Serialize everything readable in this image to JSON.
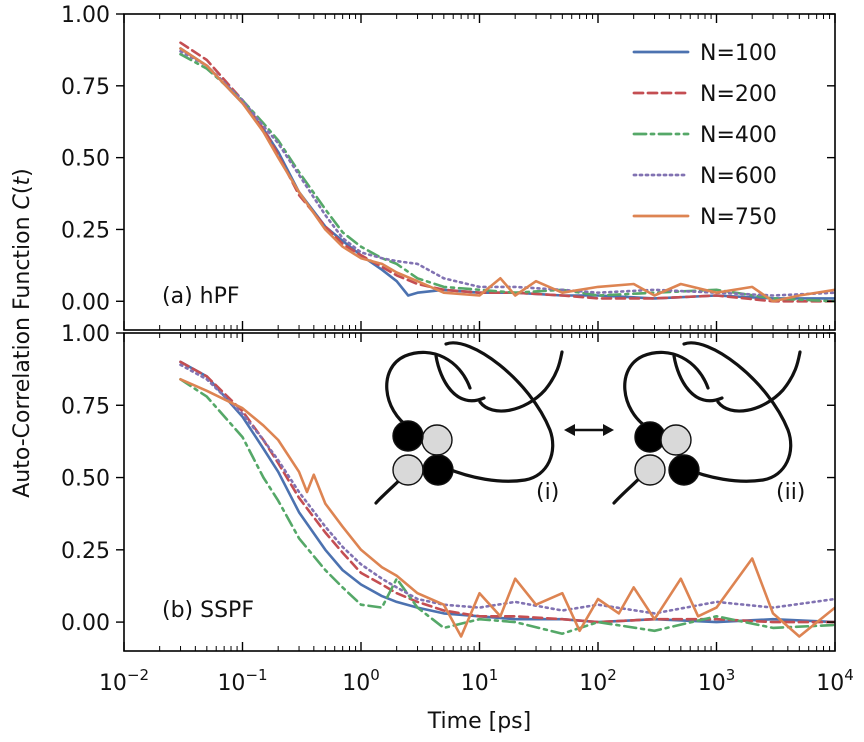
{
  "chart_data": {
    "type": "line",
    "xlabel": "Time [ps]",
    "ylabel_parts": [
      "Auto-Correlation Function ",
      "C",
      "(",
      "t",
      ")"
    ],
    "xscale": "log",
    "xlim": [
      0.01,
      10000
    ],
    "x_ticks": [
      {
        "base": "10",
        "exp": "−2",
        "value": 0.01
      },
      {
        "base": "10",
        "exp": "−1",
        "value": 0.1
      },
      {
        "base": "10",
        "exp": "0",
        "value": 1
      },
      {
        "base": "10",
        "exp": "1",
        "value": 10
      },
      {
        "base": "10",
        "exp": "2",
        "value": 100
      },
      {
        "base": "10",
        "exp": "3",
        "value": 1000
      },
      {
        "base": "10",
        "exp": "4",
        "value": 10000
      }
    ],
    "legend": {
      "placement": "top-right",
      "entries": [
        {
          "label": "N=100",
          "color": "#4c72b0",
          "style": "solid"
        },
        {
          "label": "N=200",
          "color": "#c44e52",
          "style": "dashed"
        },
        {
          "label": "N=400",
          "color": "#55a868",
          "style": "dashdot"
        },
        {
          "label": "N=600",
          "color": "#8172b2",
          "style": "dotted"
        },
        {
          "label": "N=750",
          "color": "#dd8452",
          "style": "solid"
        }
      ]
    },
    "panels": [
      {
        "id": "a",
        "label": "(a) hPF",
        "ylim": [
          -0.1,
          1.0
        ],
        "y_ticks": [
          "1.00",
          "0.75",
          "0.50",
          "0.25",
          "0.00"
        ],
        "y_tick_values": [
          1.0,
          0.75,
          0.5,
          0.25,
          0.0
        ],
        "series": [
          {
            "name": "N=100",
            "x": [
              0.03,
              0.05,
              0.1,
              0.15,
              0.2,
              0.3,
              0.5,
              0.7,
              1,
              1.5,
              2,
              2.5,
              3,
              5,
              10,
              20,
              50,
              100,
              300,
              1000,
              3000,
              10000
            ],
            "y": [
              0.88,
              0.82,
              0.69,
              0.6,
              0.52,
              0.38,
              0.26,
              0.21,
              0.16,
              0.11,
              0.07,
              0.02,
              0.03,
              0.04,
              0.03,
              0.03,
              0.02,
              0.02,
              0.01,
              0.02,
              0.01,
              0.01
            ]
          },
          {
            "name": "N=200",
            "x": [
              0.03,
              0.05,
              0.1,
              0.15,
              0.2,
              0.3,
              0.5,
              0.7,
              1,
              1.5,
              2,
              3,
              5,
              10,
              20,
              50,
              100,
              300,
              1000,
              3000,
              10000
            ],
            "y": [
              0.9,
              0.84,
              0.7,
              0.6,
              0.51,
              0.37,
              0.26,
              0.2,
              0.16,
              0.12,
              0.09,
              0.06,
              0.04,
              0.03,
              0.03,
              0.02,
              0.01,
              0.01,
              0.02,
              0.0,
              0.0
            ]
          },
          {
            "name": "N=400",
            "x": [
              0.03,
              0.05,
              0.1,
              0.15,
              0.2,
              0.3,
              0.5,
              0.7,
              1,
              1.5,
              2,
              3,
              5,
              10,
              20,
              50,
              100,
              300,
              1000,
              3000,
              10000
            ],
            "y": [
              0.86,
              0.81,
              0.7,
              0.62,
              0.56,
              0.45,
              0.32,
              0.24,
              0.19,
              0.15,
              0.13,
              0.08,
              0.05,
              0.04,
              0.03,
              0.04,
              0.02,
              0.03,
              0.04,
              0.01,
              0.0
            ]
          },
          {
            "name": "N=600",
            "x": [
              0.03,
              0.05,
              0.1,
              0.15,
              0.2,
              0.3,
              0.5,
              0.7,
              1,
              1.5,
              2,
              3,
              5,
              10,
              20,
              50,
              100,
              300,
              1000,
              3000,
              10000
            ],
            "y": [
              0.87,
              0.82,
              0.7,
              0.61,
              0.55,
              0.44,
              0.3,
              0.22,
              0.17,
              0.15,
              0.14,
              0.13,
              0.08,
              0.05,
              0.05,
              0.04,
              0.03,
              0.04,
              0.03,
              0.02,
              0.03
            ]
          },
          {
            "name": "N=750",
            "x": [
              0.03,
              0.05,
              0.1,
              0.15,
              0.2,
              0.3,
              0.5,
              0.7,
              1,
              1.5,
              2,
              3,
              5,
              10,
              15,
              20,
              30,
              50,
              100,
              200,
              300,
              500,
              1000,
              2000,
              3000,
              5000,
              10000
            ],
            "y": [
              0.88,
              0.82,
              0.69,
              0.59,
              0.5,
              0.38,
              0.25,
              0.19,
              0.15,
              0.13,
              0.1,
              0.07,
              0.03,
              0.02,
              0.08,
              0.02,
              0.07,
              0.03,
              0.05,
              0.06,
              0.02,
              0.06,
              0.03,
              0.05,
              0.0,
              0.02,
              0.04
            ]
          }
        ]
      },
      {
        "id": "b",
        "label": "(b) SSPF",
        "ylim": [
          -0.1,
          1.0
        ],
        "y_ticks": [
          "1.00",
          "0.75",
          "0.50",
          "0.25",
          "0.00"
        ],
        "y_tick_values": [
          1.0,
          0.75,
          0.5,
          0.25,
          0.0
        ],
        "series": [
          {
            "name": "N=100",
            "x": [
              0.03,
              0.05,
              0.1,
              0.15,
              0.2,
              0.3,
              0.5,
              0.7,
              1,
              1.5,
              2,
              3,
              5,
              10,
              20,
              50,
              100,
              300,
              1000,
              3000,
              10000
            ],
            "y": [
              0.9,
              0.85,
              0.71,
              0.6,
              0.52,
              0.38,
              0.25,
              0.18,
              0.13,
              0.09,
              0.07,
              0.05,
              0.03,
              0.02,
              0.01,
              0.01,
              0.0,
              0.01,
              0.0,
              0.01,
              0.0
            ]
          },
          {
            "name": "N=200",
            "x": [
              0.03,
              0.05,
              0.1,
              0.15,
              0.2,
              0.3,
              0.5,
              0.7,
              1,
              1.5,
              2,
              3,
              5,
              10,
              20,
              50,
              100,
              300,
              1000,
              3000,
              10000
            ],
            "y": [
              0.9,
              0.85,
              0.73,
              0.63,
              0.55,
              0.43,
              0.31,
              0.24,
              0.17,
              0.13,
              0.1,
              0.07,
              0.04,
              0.02,
              0.02,
              0.01,
              0.0,
              0.01,
              0.01,
              0.0,
              0.0
            ]
          },
          {
            "name": "N=400",
            "x": [
              0.03,
              0.05,
              0.1,
              0.15,
              0.2,
              0.3,
              0.5,
              0.7,
              1,
              1.5,
              2,
              3,
              5,
              10,
              20,
              50,
              100,
              300,
              1000,
              3000,
              10000
            ],
            "y": [
              0.84,
              0.78,
              0.64,
              0.5,
              0.42,
              0.29,
              0.18,
              0.12,
              0.06,
              0.05,
              0.15,
              0.05,
              -0.02,
              0.01,
              0.0,
              -0.04,
              0.0,
              -0.03,
              0.02,
              -0.02,
              -0.01
            ]
          },
          {
            "name": "N=600",
            "x": [
              0.03,
              0.05,
              0.1,
              0.15,
              0.2,
              0.3,
              0.5,
              0.7,
              1,
              1.5,
              2,
              3,
              5,
              10,
              20,
              50,
              100,
              300,
              1000,
              3000,
              10000
            ],
            "y": [
              0.89,
              0.84,
              0.72,
              0.63,
              0.56,
              0.45,
              0.33,
              0.26,
              0.2,
              0.15,
              0.12,
              0.08,
              0.06,
              0.05,
              0.07,
              0.04,
              0.06,
              0.03,
              0.07,
              0.05,
              0.08
            ]
          },
          {
            "name": "N=750",
            "x": [
              0.03,
              0.05,
              0.1,
              0.15,
              0.2,
              0.3,
              0.35,
              0.4,
              0.5,
              0.7,
              1,
              1.5,
              2,
              3,
              5,
              7,
              10,
              15,
              20,
              30,
              50,
              70,
              100,
              150,
              200,
              300,
              500,
              700,
              1000,
              2000,
              3000,
              5000,
              10000
            ],
            "y": [
              0.84,
              0.8,
              0.74,
              0.68,
              0.63,
              0.52,
              0.45,
              0.51,
              0.41,
              0.33,
              0.25,
              0.19,
              0.16,
              0.1,
              0.06,
              -0.05,
              0.1,
              0.02,
              0.15,
              0.06,
              0.1,
              -0.03,
              0.08,
              0.03,
              0.12,
              0.01,
              0.15,
              0.02,
              0.05,
              0.22,
              0.03,
              -0.05,
              0.05
            ]
          }
        ]
      }
    ],
    "inset": {
      "labels": [
        "(i)",
        "(ii)"
      ]
    }
  }
}
